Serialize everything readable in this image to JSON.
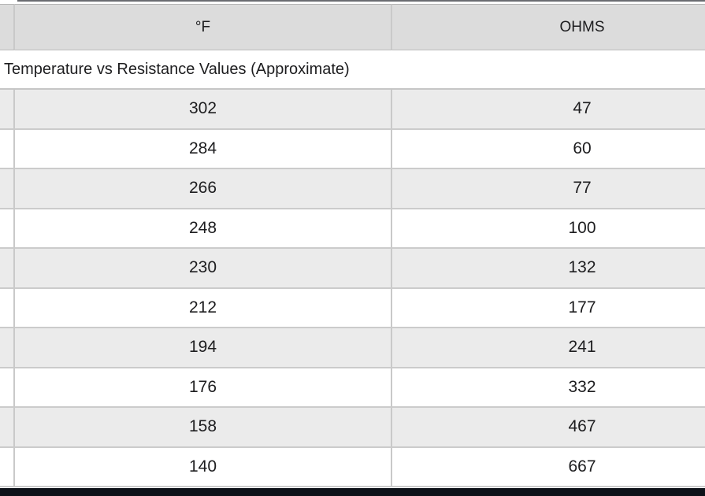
{
  "table": {
    "caption": "Temperature vs Resistance Values (Approximate)",
    "columns": [
      {
        "label": "°F"
      },
      {
        "label": "OHMS"
      }
    ],
    "rows": [
      [
        "302",
        "47"
      ],
      [
        "284",
        "60"
      ],
      [
        "266",
        "77"
      ],
      [
        "248",
        "100"
      ],
      [
        "230",
        "132"
      ],
      [
        "212",
        "177"
      ],
      [
        "194",
        "241"
      ],
      [
        "176",
        "332"
      ],
      [
        "158",
        "467"
      ],
      [
        "140",
        "667"
      ]
    ]
  },
  "chart_data": {
    "type": "table",
    "title": "Temperature vs Resistance Values (Approximate)",
    "categories": [
      "°F",
      "OHMS"
    ],
    "series": [
      {
        "name": "°F",
        "values": [
          302,
          284,
          266,
          248,
          230,
          212,
          194,
          176,
          158,
          140
        ]
      },
      {
        "name": "OHMS",
        "values": [
          47,
          60,
          77,
          100,
          132,
          177,
          241,
          332,
          467,
          667
        ]
      }
    ]
  },
  "colors": {
    "header_bg": "#dcdcdc",
    "alt_row_bg": "#ebebeb",
    "border": "#c9c9c9",
    "bottom_bar": "#0d1118",
    "text": "#1d1d1f"
  }
}
